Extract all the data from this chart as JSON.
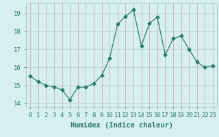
{
  "x": [
    0,
    1,
    2,
    3,
    4,
    5,
    6,
    7,
    8,
    9,
    10,
    11,
    12,
    13,
    14,
    15,
    16,
    17,
    18,
    19,
    20,
    21,
    22,
    23
  ],
  "y": [
    15.5,
    15.2,
    15.0,
    14.9,
    14.75,
    14.2,
    14.9,
    14.9,
    15.1,
    15.55,
    16.5,
    18.4,
    18.85,
    19.2,
    17.2,
    18.45,
    18.8,
    16.7,
    17.6,
    17.75,
    17.0,
    16.3,
    16.0,
    16.1
  ],
  "line_color": "#2d7a6a",
  "marker": "D",
  "marker_size": 2.5,
  "bg_color": "#d6f0f0",
  "grid_color_v": "#c8a0a0",
  "grid_color_h": "#b0c8c8",
  "xlabel": "Humidex (Indice chaleur)",
  "ylim": [
    13.8,
    19.6
  ],
  "xlim": [
    -0.5,
    23.5
  ],
  "yticks": [
    14,
    15,
    16,
    17,
    18,
    19
  ],
  "xtick_labels": [
    "0",
    "1",
    "2",
    "3",
    "4",
    "5",
    "6",
    "7",
    "8",
    "9",
    "10",
    "11",
    "12",
    "13",
    "14",
    "15",
    "16",
    "17",
    "18",
    "19",
    "20",
    "21",
    "22",
    "23"
  ],
  "tick_color": "#2d7a6a",
  "xlabel_fontsize": 7.5,
  "tick_fontsize": 6.5
}
